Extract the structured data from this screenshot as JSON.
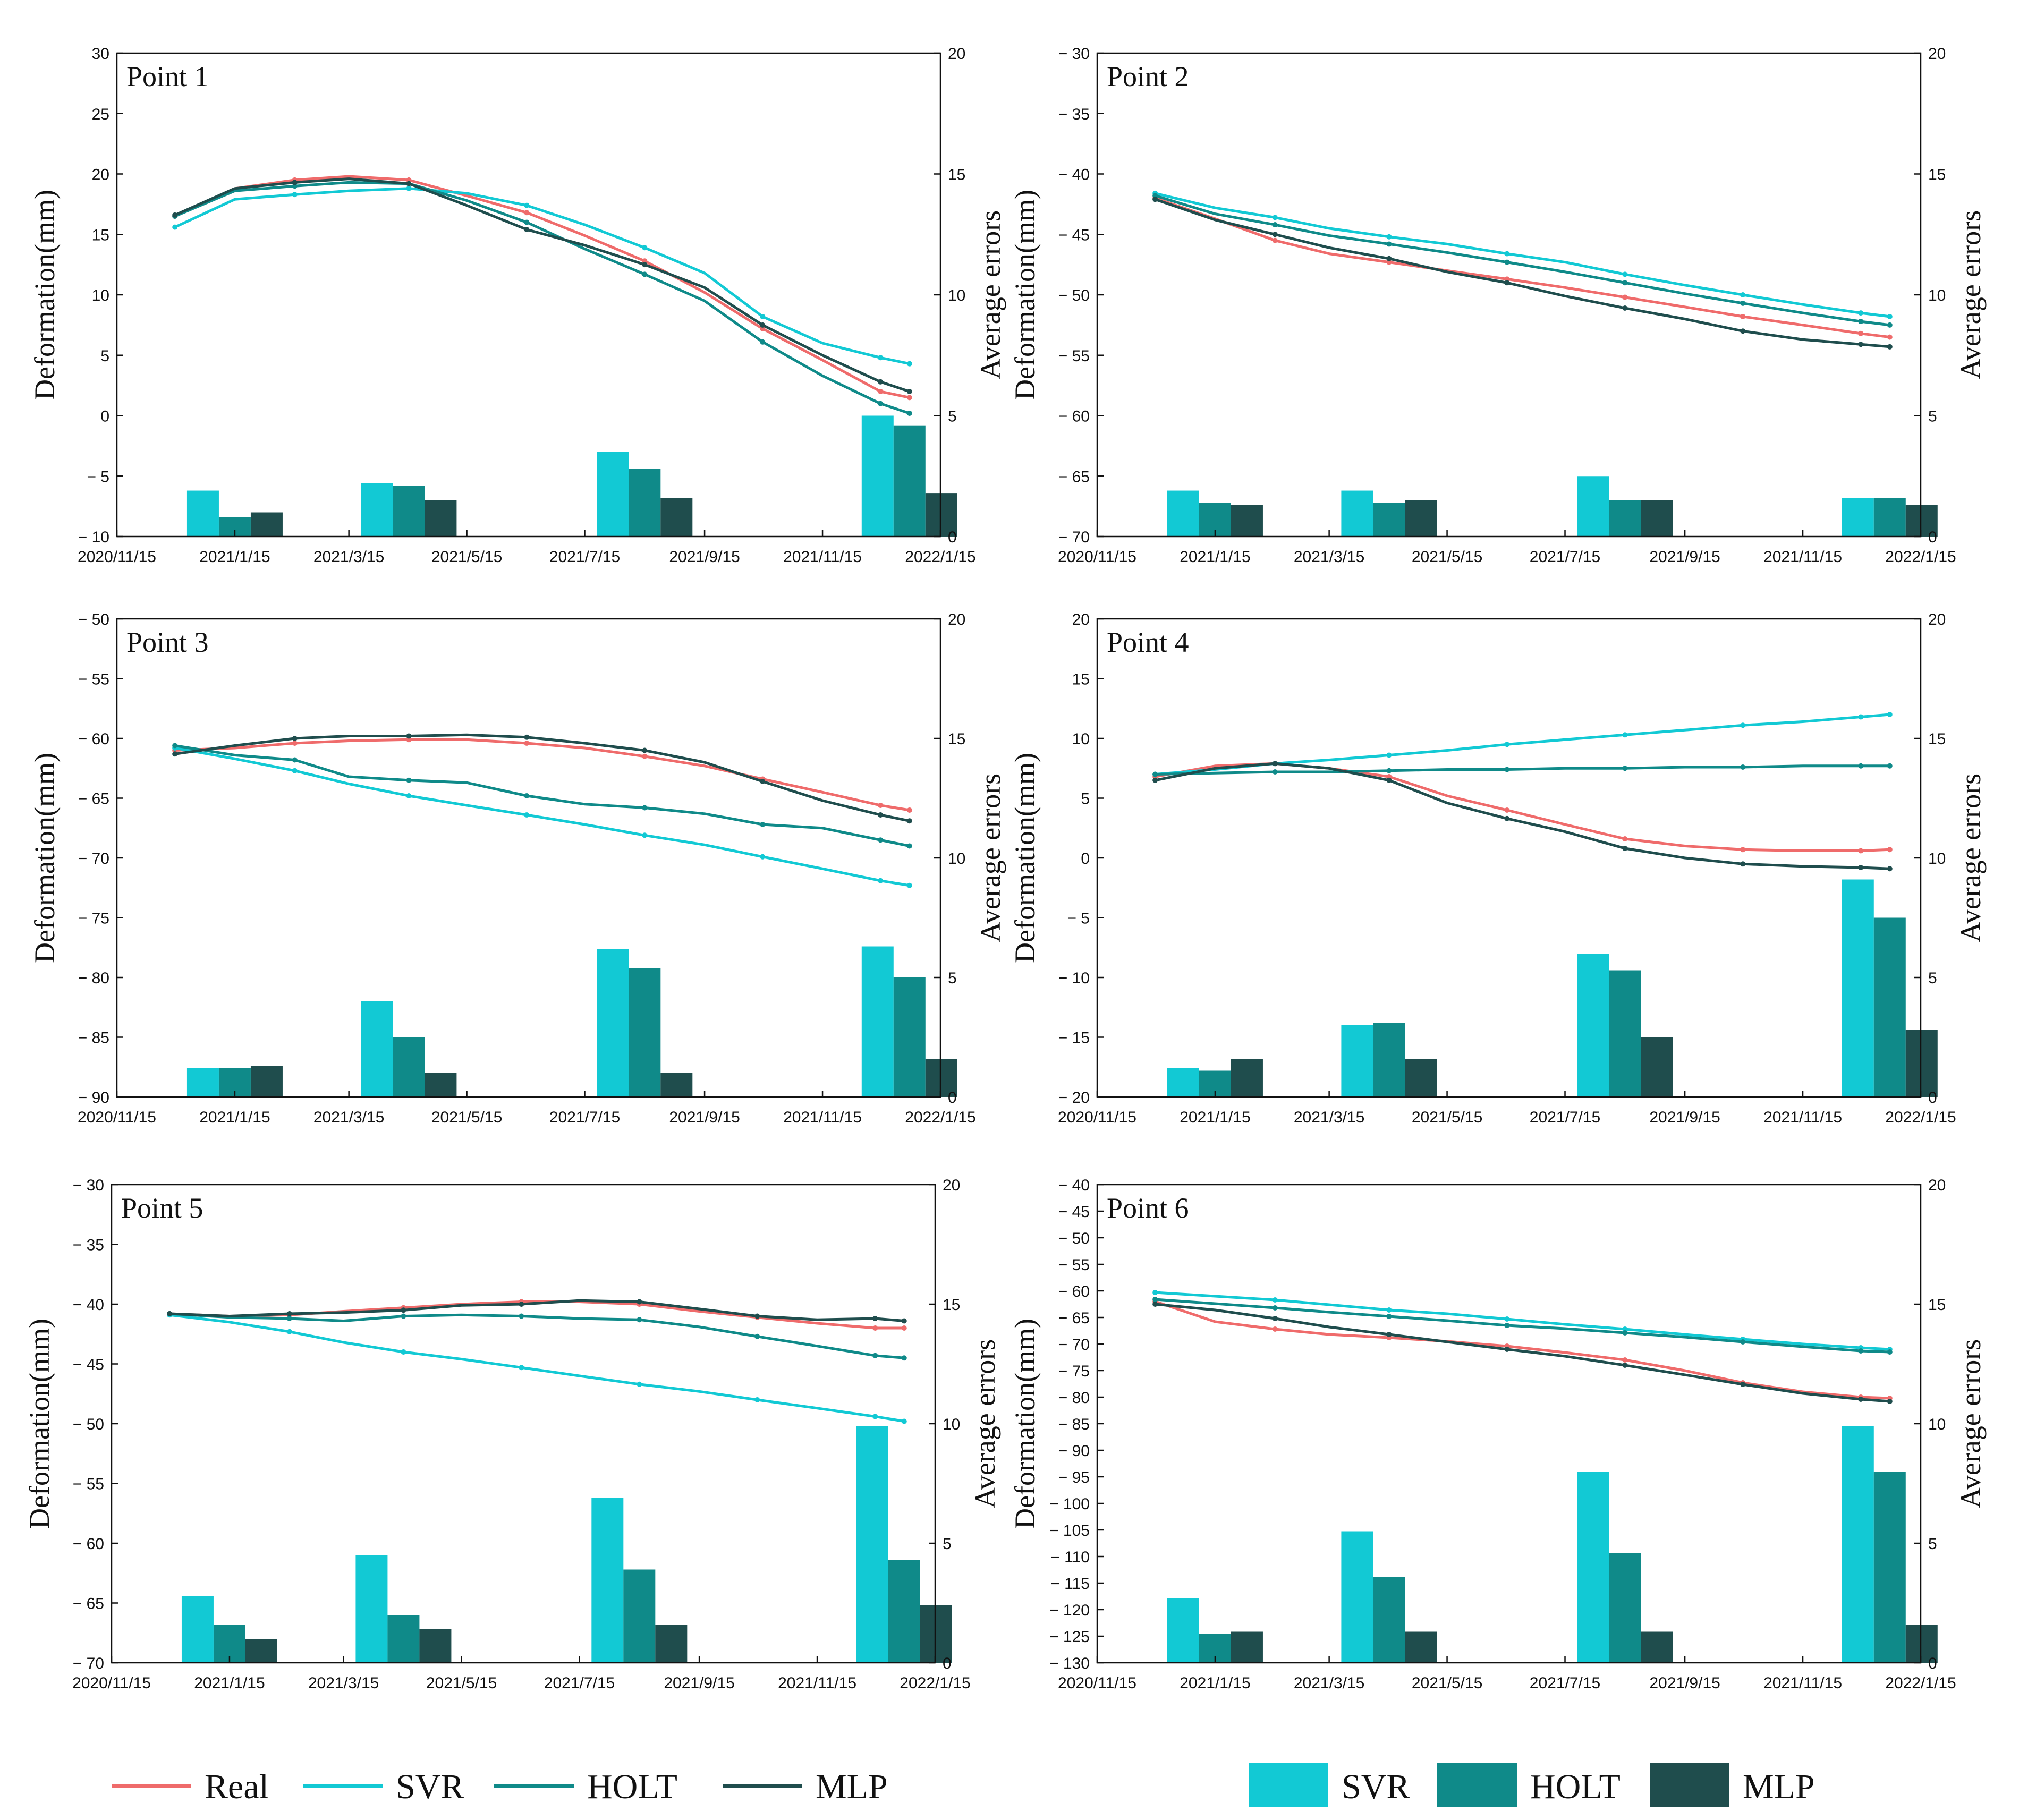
{
  "figure": {
    "ylabel_left": "Deformation(mm)",
    "ylabel_right": "Average errors",
    "x_tick_labels": [
      "2020/11/15",
      "2021/1/15",
      "2021/3/15",
      "2021/5/15",
      "2021/7/15",
      "2021/9/15",
      "2021/11/15",
      "2022/1/15"
    ],
    "colors": {
      "Real": "#ef6b6b",
      "SVR": "#12c9d4",
      "HOLT": "#0f8a89",
      "MLP": "#1f4d4d"
    }
  },
  "legend_lines": {
    "items": [
      "Real",
      "SVR",
      "HOLT",
      "MLP"
    ]
  },
  "legend_bars": {
    "items": [
      "SVR",
      "HOLT",
      "MLP"
    ]
  },
  "chart_data": [
    {
      "type": "line",
      "title": "Point 1",
      "xlabel": "",
      "ylabel": "Deformation(mm)",
      "ylabel_right": "Average errors",
      "ylim": [
        -10,
        30
      ],
      "yticks": [
        -10,
        -5,
        0,
        5,
        10,
        15,
        20,
        25,
        30
      ],
      "y2lim": [
        0,
        20
      ],
      "y2ticks": [
        0,
        5,
        10,
        15,
        20
      ],
      "x": [
        "2020/12/15",
        "2021/1/15",
        "2021/2/15",
        "2021/3/15",
        "2021/4/15",
        "2021/5/15",
        "2021/6/15",
        "2021/7/15",
        "2021/8/15",
        "2021/9/15",
        "2021/10/15",
        "2021/11/15",
        "2021/12/15",
        "2021/12/30"
      ],
      "series": [
        {
          "name": "Real",
          "values": [
            16.5,
            18.8,
            19.5,
            19.8,
            19.5,
            18.2,
            16.8,
            14.9,
            12.8,
            10.2,
            7.2,
            4.6,
            2.0,
            1.5
          ]
        },
        {
          "name": "SVR",
          "values": [
            15.6,
            17.9,
            18.3,
            18.6,
            18.8,
            18.4,
            17.4,
            15.8,
            13.9,
            11.8,
            8.2,
            6.0,
            4.8,
            4.3
          ]
        },
        {
          "name": "HOLT",
          "values": [
            16.5,
            18.6,
            19.0,
            19.3,
            19.2,
            17.8,
            16.0,
            13.8,
            11.7,
            9.5,
            6.1,
            3.3,
            1.0,
            0.2
          ]
        },
        {
          "name": "MLP",
          "values": [
            16.6,
            18.8,
            19.3,
            19.6,
            19.2,
            17.4,
            15.4,
            14.1,
            12.5,
            10.6,
            7.5,
            5.0,
            2.8,
            2.0
          ]
        }
      ],
      "bars": {
        "groups": [
          "2021/1/15",
          "2021/4/15",
          "2021/8/15",
          "2021/12/30"
        ],
        "series": [
          {
            "name": "SVR",
            "values": [
              1.9,
              2.2,
              3.5,
              5.0
            ]
          },
          {
            "name": "HOLT",
            "values": [
              0.8,
              2.1,
              2.8,
              4.6
            ]
          },
          {
            "name": "MLP",
            "values": [
              1.0,
              1.5,
              1.6,
              1.8
            ]
          }
        ]
      }
    },
    {
      "type": "line",
      "title": "Point 2",
      "xlabel": "",
      "ylabel": "Deformation(mm)",
      "ylabel_right": "Average errors",
      "ylim": [
        -70,
        -30
      ],
      "yticks": [
        -70,
        -65,
        -60,
        -55,
        -50,
        -45,
        -40,
        -35,
        -30
      ],
      "y2lim": [
        0,
        20
      ],
      "y2ticks": [
        0,
        5,
        10,
        15,
        20
      ],
      "x": [
        "2020/12/15",
        "2021/1/15",
        "2021/2/15",
        "2021/3/15",
        "2021/4/15",
        "2021/5/15",
        "2021/6/15",
        "2021/7/15",
        "2021/8/15",
        "2021/9/15",
        "2021/10/15",
        "2021/11/15",
        "2021/12/15",
        "2021/12/30"
      ],
      "series": [
        {
          "name": "Real",
          "values": [
            -42.0,
            -43.7,
            -45.5,
            -46.6,
            -47.3,
            -48.0,
            -48.7,
            -49.4,
            -50.2,
            -51.0,
            -51.8,
            -52.5,
            -53.2,
            -53.5
          ]
        },
        {
          "name": "SVR",
          "values": [
            -41.6,
            -42.8,
            -43.6,
            -44.5,
            -45.2,
            -45.8,
            -46.6,
            -47.3,
            -48.3,
            -49.2,
            -50.0,
            -50.8,
            -51.5,
            -51.8
          ]
        },
        {
          "name": "HOLT",
          "values": [
            -41.8,
            -43.3,
            -44.2,
            -45.1,
            -45.8,
            -46.5,
            -47.3,
            -48.1,
            -49.0,
            -49.9,
            -50.7,
            -51.5,
            -52.2,
            -52.5
          ]
        },
        {
          "name": "MLP",
          "values": [
            -42.1,
            -43.8,
            -45.0,
            -46.1,
            -47.0,
            -48.1,
            -49.0,
            -50.1,
            -51.1,
            -52.0,
            -53.0,
            -53.7,
            -54.1,
            -54.3
          ]
        }
      ],
      "bars": {
        "groups": [
          "2021/1/15",
          "2021/4/15",
          "2021/8/15",
          "2021/12/30"
        ],
        "series": [
          {
            "name": "SVR",
            "values": [
              1.9,
              1.9,
              2.5,
              1.6
            ]
          },
          {
            "name": "HOLT",
            "values": [
              1.4,
              1.4,
              1.5,
              1.6
            ]
          },
          {
            "name": "MLP",
            "values": [
              1.3,
              1.5,
              1.5,
              1.3
            ]
          }
        ]
      }
    },
    {
      "type": "line",
      "title": "Point 3",
      "xlabel": "",
      "ylabel": "Deformation(mm)",
      "ylabel_right": "Average errors",
      "ylim": [
        -90,
        -50
      ],
      "yticks": [
        -90,
        -85,
        -80,
        -75,
        -70,
        -65,
        -60,
        -55,
        -50
      ],
      "y2lim": [
        0,
        20
      ],
      "y2ticks": [
        0,
        5,
        10,
        15,
        20
      ],
      "x": [
        "2020/12/15",
        "2021/1/15",
        "2021/2/15",
        "2021/3/15",
        "2021/4/15",
        "2021/5/15",
        "2021/6/15",
        "2021/7/15",
        "2021/8/15",
        "2021/9/15",
        "2021/10/15",
        "2021/11/15",
        "2021/12/15",
        "2021/12/30"
      ],
      "series": [
        {
          "name": "Real",
          "values": [
            -61.0,
            -60.8,
            -60.4,
            -60.2,
            -60.1,
            -60.1,
            -60.4,
            -60.8,
            -61.5,
            -62.3,
            -63.4,
            -64.5,
            -65.6,
            -66.0
          ]
        },
        {
          "name": "SVR",
          "values": [
            -60.8,
            -61.7,
            -62.7,
            -63.8,
            -64.8,
            -65.6,
            -66.4,
            -67.2,
            -68.1,
            -68.9,
            -69.9,
            -70.9,
            -71.9,
            -72.3
          ]
        },
        {
          "name": "HOLT",
          "values": [
            -60.6,
            -61.4,
            -61.8,
            -63.2,
            -63.5,
            -63.7,
            -64.8,
            -65.5,
            -65.8,
            -66.3,
            -67.2,
            -67.5,
            -68.5,
            -69.0
          ]
        },
        {
          "name": "MLP",
          "values": [
            -61.3,
            -60.6,
            -60.0,
            -59.8,
            -59.8,
            -59.7,
            -59.9,
            -60.4,
            -61.0,
            -62.0,
            -63.6,
            -65.2,
            -66.4,
            -66.9
          ]
        }
      ],
      "bars": {
        "groups": [
          "2021/1/15",
          "2021/4/15",
          "2021/8/15",
          "2021/12/30"
        ],
        "series": [
          {
            "name": "SVR",
            "values": [
              1.2,
              4.0,
              6.2,
              6.3
            ]
          },
          {
            "name": "HOLT",
            "values": [
              1.2,
              2.5,
              5.4,
              5.0
            ]
          },
          {
            "name": "MLP",
            "values": [
              1.3,
              1.0,
              1.0,
              1.6
            ]
          }
        ]
      }
    },
    {
      "type": "line",
      "title": "Point 4",
      "xlabel": "",
      "ylabel": "Deformation(mm)",
      "ylabel_right": "Average errors",
      "ylim": [
        -20,
        20
      ],
      "yticks": [
        -20,
        -15,
        -10,
        -5,
        0,
        5,
        10,
        15,
        20
      ],
      "y2lim": [
        0,
        20
      ],
      "y2ticks": [
        0,
        5,
        10,
        15,
        20
      ],
      "x": [
        "2020/12/15",
        "2021/1/15",
        "2021/2/15",
        "2021/3/15",
        "2021/4/15",
        "2021/5/15",
        "2021/6/15",
        "2021/7/15",
        "2021/8/15",
        "2021/9/15",
        "2021/10/15",
        "2021/11/15",
        "2021/12/15",
        "2021/12/30"
      ],
      "series": [
        {
          "name": "Real",
          "values": [
            6.8,
            7.7,
            7.9,
            7.5,
            6.8,
            5.2,
            4.0,
            2.8,
            1.6,
            1.0,
            0.7,
            0.6,
            0.6,
            0.7
          ]
        },
        {
          "name": "SVR",
          "values": [
            7.0,
            7.4,
            7.9,
            8.2,
            8.6,
            9.0,
            9.5,
            9.9,
            10.3,
            10.7,
            11.1,
            11.4,
            11.8,
            12.0
          ]
        },
        {
          "name": "HOLT",
          "values": [
            7.0,
            7.1,
            7.2,
            7.2,
            7.3,
            7.4,
            7.4,
            7.5,
            7.5,
            7.6,
            7.6,
            7.7,
            7.7,
            7.7
          ]
        },
        {
          "name": "MLP",
          "values": [
            6.5,
            7.5,
            7.9,
            7.5,
            6.5,
            4.6,
            3.3,
            2.2,
            0.8,
            0.0,
            -0.5,
            -0.7,
            -0.8,
            -0.9
          ]
        }
      ],
      "bars": {
        "groups": [
          "2021/1/15",
          "2021/4/15",
          "2021/8/15",
          "2021/12/30"
        ],
        "series": [
          {
            "name": "SVR",
            "values": [
              1.2,
              3.0,
              6.0,
              9.1
            ]
          },
          {
            "name": "HOLT",
            "values": [
              1.1,
              3.1,
              5.3,
              7.5
            ]
          },
          {
            "name": "MLP",
            "values": [
              1.6,
              1.6,
              2.5,
              2.8
            ]
          }
        ]
      }
    },
    {
      "type": "line",
      "title": "Point 5",
      "xlabel": "",
      "ylabel": "Deformation(mm)",
      "ylabel_right": "Average errors",
      "ylim": [
        -70,
        -30
      ],
      "yticks": [
        -70,
        -65,
        -60,
        -55,
        -50,
        -45,
        -40,
        -35,
        -30
      ],
      "y2lim": [
        0,
        20
      ],
      "y2ticks": [
        0,
        5,
        10,
        15,
        20
      ],
      "x": [
        "2020/12/15",
        "2021/1/15",
        "2021/2/15",
        "2021/3/15",
        "2021/4/15",
        "2021/5/15",
        "2021/6/15",
        "2021/7/15",
        "2021/8/15",
        "2021/9/15",
        "2021/10/15",
        "2021/11/15",
        "2021/12/15",
        "2021/12/30"
      ],
      "series": [
        {
          "name": "Real",
          "values": [
            -40.8,
            -41.0,
            -40.9,
            -40.6,
            -40.3,
            -40.0,
            -39.8,
            -39.8,
            -40.0,
            -40.6,
            -41.1,
            -41.6,
            -42.0,
            -42.0
          ]
        },
        {
          "name": "SVR",
          "values": [
            -40.9,
            -41.5,
            -42.3,
            -43.2,
            -44.0,
            -44.6,
            -45.3,
            -46.0,
            -46.7,
            -47.3,
            -48.0,
            -48.7,
            -49.4,
            -49.8
          ]
        },
        {
          "name": "HOLT",
          "values": [
            -40.8,
            -41.1,
            -41.2,
            -41.4,
            -41.0,
            -40.9,
            -41.0,
            -41.2,
            -41.3,
            -41.9,
            -42.7,
            -43.5,
            -44.3,
            -44.5
          ]
        },
        {
          "name": "MLP",
          "values": [
            -40.8,
            -41.0,
            -40.8,
            -40.7,
            -40.5,
            -40.1,
            -40.0,
            -39.7,
            -39.8,
            -40.4,
            -41.0,
            -41.3,
            -41.2,
            -41.4
          ]
        }
      ],
      "bars": {
        "groups": [
          "2021/1/15",
          "2021/4/15",
          "2021/8/15",
          "2021/12/30"
        ],
        "series": [
          {
            "name": "SVR",
            "values": [
              2.8,
              4.5,
              6.9,
              9.9
            ]
          },
          {
            "name": "HOLT",
            "values": [
              1.6,
              2.0,
              3.9,
              4.3
            ]
          },
          {
            "name": "MLP",
            "values": [
              1.0,
              1.4,
              1.6,
              2.4
            ]
          }
        ]
      }
    },
    {
      "type": "line",
      "title": "Point 6",
      "xlabel": "",
      "ylabel": "Deformation(mm)",
      "ylabel_right": "Average errors",
      "ylim": [
        -130,
        -40
      ],
      "yticks": [
        -130,
        -125,
        -120,
        -115,
        -110,
        -105,
        -100,
        -95,
        -90,
        -85,
        -80,
        -75,
        -70,
        -65,
        -60,
        -55,
        -50,
        -45,
        -40
      ],
      "y2lim": [
        0,
        20
      ],
      "y2ticks": [
        0,
        5,
        10,
        15,
        20
      ],
      "x": [
        "2020/12/15",
        "2021/1/15",
        "2021/2/15",
        "2021/3/15",
        "2021/4/15",
        "2021/5/15",
        "2021/6/15",
        "2021/7/15",
        "2021/8/15",
        "2021/9/15",
        "2021/10/15",
        "2021/11/15",
        "2021/12/15",
        "2021/12/30"
      ],
      "series": [
        {
          "name": "Real",
          "values": [
            -62.0,
            -65.8,
            -67.2,
            -68.2,
            -68.8,
            -69.5,
            -70.4,
            -71.6,
            -73.0,
            -75.0,
            -77.3,
            -79.0,
            -80.0,
            -80.2
          ]
        },
        {
          "name": "SVR",
          "values": [
            -60.3,
            -61.0,
            -61.7,
            -62.6,
            -63.6,
            -64.3,
            -65.3,
            -66.3,
            -67.2,
            -68.2,
            -69.1,
            -70.0,
            -70.7,
            -71.0
          ]
        },
        {
          "name": "HOLT",
          "values": [
            -61.6,
            -62.4,
            -63.2,
            -64.0,
            -64.8,
            -65.6,
            -66.5,
            -67.1,
            -67.9,
            -68.7,
            -69.6,
            -70.5,
            -71.3,
            -71.5
          ]
        },
        {
          "name": "MLP",
          "values": [
            -62.5,
            -63.6,
            -65.2,
            -66.8,
            -68.2,
            -69.6,
            -71.0,
            -72.3,
            -74.0,
            -75.8,
            -77.6,
            -79.3,
            -80.4,
            -80.8
          ]
        }
      ],
      "bars": {
        "groups": [
          "2021/1/15",
          "2021/4/15",
          "2021/8/15",
          "2021/12/30"
        ],
        "series": [
          {
            "name": "SVR",
            "values": [
              2.7,
              5.5,
              8.0,
              9.9
            ]
          },
          {
            "name": "HOLT",
            "values": [
              1.2,
              3.6,
              4.6,
              8.0
            ]
          },
          {
            "name": "MLP",
            "values": [
              1.3,
              1.3,
              1.3,
              1.6
            ]
          }
        ]
      }
    }
  ]
}
